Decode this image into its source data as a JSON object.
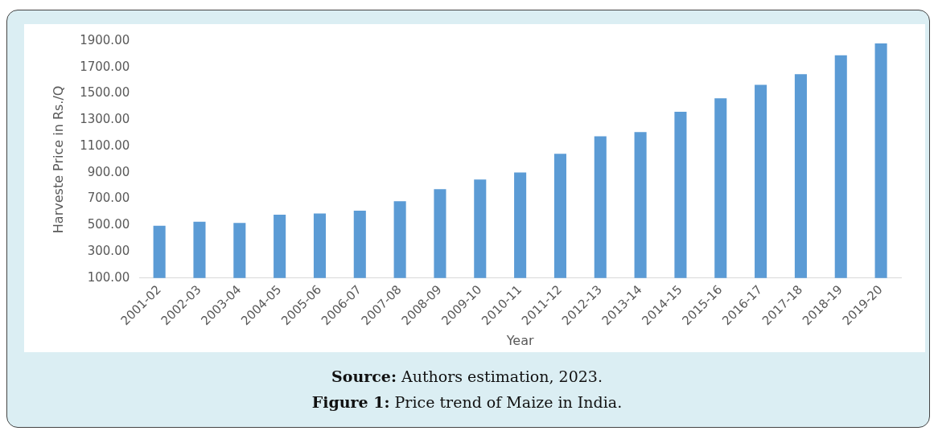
{
  "chart_data": {
    "type": "bar",
    "xlabel": "Year",
    "ylabel": "Harveste Price in Rs./Q",
    "categories": [
      "2001-02",
      "2002-03",
      "2003-04",
      "2004-05",
      "2005-06",
      "2006-07",
      "2007-08",
      "2008-09",
      "2009-10",
      "2010-11",
      "2011-12",
      "2012-13",
      "2013-14",
      "2014-15",
      "2015-16",
      "2016-17",
      "2017-18",
      "2018-19",
      "2019-20"
    ],
    "values": [
      497,
      527,
      518,
      581,
      590,
      612,
      683,
      775,
      848,
      901,
      1044,
      1176,
      1209,
      1362,
      1465,
      1567,
      1648,
      1791,
      1882
    ],
    "color": "#5b9bd5",
    "ylim": [
      100,
      1900
    ],
    "yticks": [
      {
        "value": 100,
        "label": "100.00"
      },
      {
        "value": 300,
        "label": "300.00"
      },
      {
        "value": 500,
        "label": "500.00"
      },
      {
        "value": 700,
        "label": "700.00"
      },
      {
        "value": 900,
        "label": "900.00"
      },
      {
        "value": 1100,
        "label": "1100.00"
      },
      {
        "value": 1300,
        "label": "1300.00"
      },
      {
        "value": 1500,
        "label": "1500.00"
      },
      {
        "value": 1700,
        "label": "1700.00"
      },
      {
        "value": 1900,
        "label": "1900.00"
      }
    ],
    "grid": false,
    "legend": false,
    "annotations": [
      "Source: Authors estimation, 2023.",
      "Figure 1: Price trend of Maize in India."
    ]
  }
}
